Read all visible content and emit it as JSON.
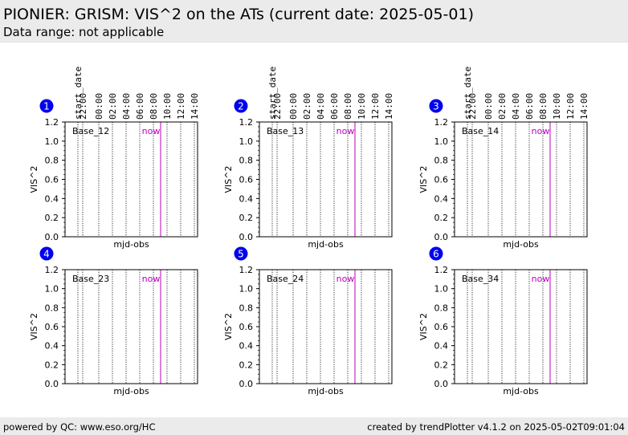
{
  "header": {
    "title": "PIONIER: GRISM: VIS^2 on the ATs (current date: 2025-05-01)",
    "subtitle": "Data range: not applicable"
  },
  "footer": {
    "left": "powered by QC: www.eso.org/HC",
    "right": "created by trendPlotter v4.1.2 on 2025-05-02T09:01:04"
  },
  "colors": {
    "header_bg": "#ebebeb",
    "badge": "#0000ee",
    "now_line": "#bb00bb",
    "axes": "#000000"
  },
  "chart_data": [
    {
      "type": "scatter",
      "panel": "1",
      "title": "Base_12",
      "xlabel": "mjd-obs",
      "ylabel": "VIS^2",
      "ylim": [
        0,
        1.2
      ],
      "yticks": [
        "0.0",
        "0.2",
        "0.4",
        "0.6",
        "0.8",
        "1.0",
        "1.2"
      ],
      "time_axis": [
        "start_date",
        "22:00",
        "00:00",
        "02:00",
        "04:00",
        "06:00",
        "08:00",
        "10:00",
        "12:00",
        "14:00"
      ],
      "now_label": "now",
      "series": []
    },
    {
      "type": "scatter",
      "panel": "2",
      "title": "Base_13",
      "xlabel": "mjd-obs",
      "ylabel": "VIS^2",
      "ylim": [
        0,
        1.2
      ],
      "yticks": [
        "0.0",
        "0.2",
        "0.4",
        "0.6",
        "0.8",
        "1.0",
        "1.2"
      ],
      "time_axis": [
        "start_date",
        "22:00",
        "00:00",
        "02:00",
        "04:00",
        "06:00",
        "08:00",
        "10:00",
        "12:00",
        "14:00"
      ],
      "now_label": "now",
      "series": []
    },
    {
      "type": "scatter",
      "panel": "3",
      "title": "Base_14",
      "xlabel": "mjd-obs",
      "ylabel": "VIS^2",
      "ylim": [
        0,
        1.2
      ],
      "yticks": [
        "0.0",
        "0.2",
        "0.4",
        "0.6",
        "0.8",
        "1.0",
        "1.2"
      ],
      "time_axis": [
        "start_date",
        "22:00",
        "00:00",
        "02:00",
        "04:00",
        "06:00",
        "08:00",
        "10:00",
        "12:00",
        "14:00"
      ],
      "now_label": "now",
      "series": []
    },
    {
      "type": "scatter",
      "panel": "4",
      "title": "Base_23",
      "xlabel": "mjd-obs",
      "ylabel": "VIS^2",
      "ylim": [
        0,
        1.2
      ],
      "yticks": [
        "0.0",
        "0.2",
        "0.4",
        "0.6",
        "0.8",
        "1.0",
        "1.2"
      ],
      "now_label": "now",
      "series": []
    },
    {
      "type": "scatter",
      "panel": "5",
      "title": "Base_24",
      "xlabel": "mjd-obs",
      "ylabel": "VIS^2",
      "ylim": [
        0,
        1.2
      ],
      "yticks": [
        "0.0",
        "0.2",
        "0.4",
        "0.6",
        "0.8",
        "1.0",
        "1.2"
      ],
      "now_label": "now",
      "series": []
    },
    {
      "type": "scatter",
      "panel": "6",
      "title": "Base_34",
      "xlabel": "mjd-obs",
      "ylabel": "VIS^2",
      "ylim": [
        0,
        1.2
      ],
      "yticks": [
        "0.0",
        "0.2",
        "0.4",
        "0.6",
        "0.8",
        "1.0",
        "1.2"
      ],
      "now_label": "now",
      "series": []
    }
  ]
}
